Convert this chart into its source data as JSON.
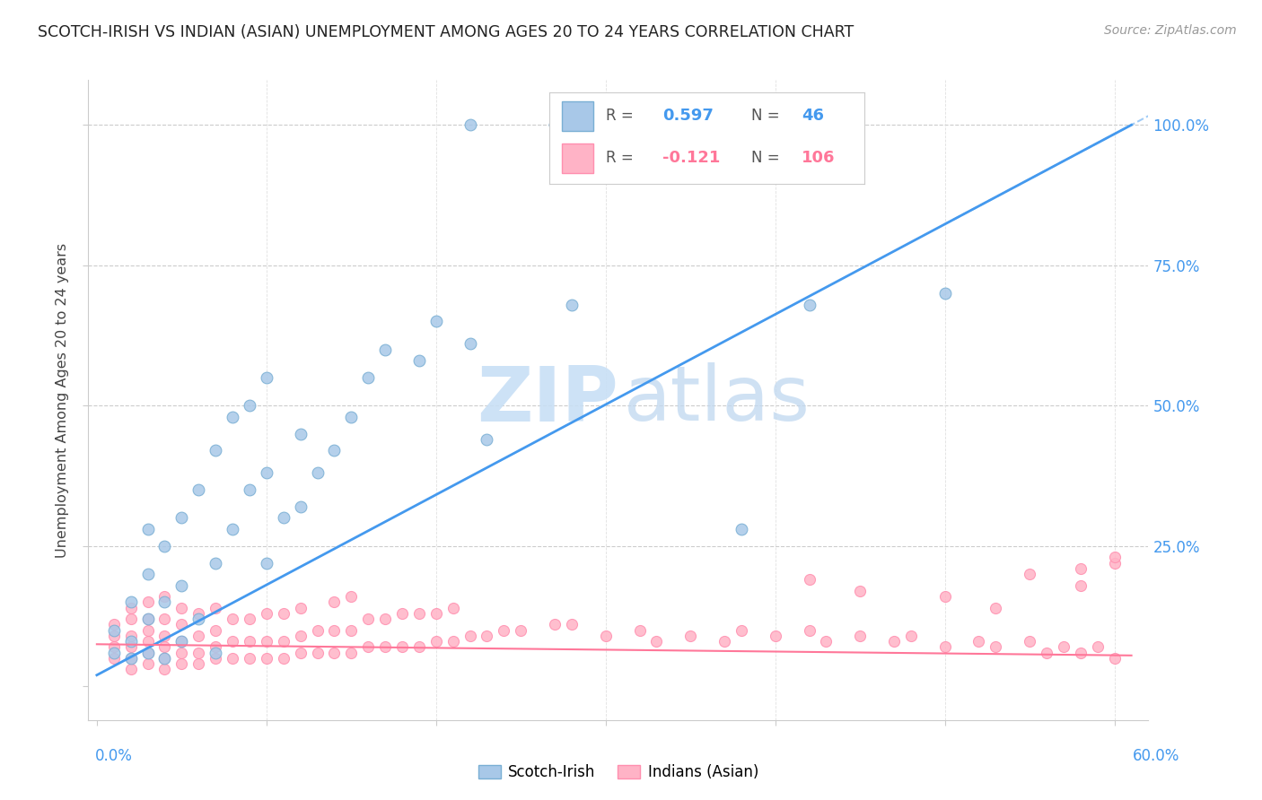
{
  "title": "SCOTCH-IRISH VS INDIAN (ASIAN) UNEMPLOYMENT AMONG AGES 20 TO 24 YEARS CORRELATION CHART",
  "source": "Source: ZipAtlas.com",
  "ylabel": "Unemployment Among Ages 20 to 24 years",
  "xlim": [
    -0.005,
    0.62
  ],
  "ylim": [
    -0.06,
    1.08
  ],
  "blue_color": "#A8C8E8",
  "blue_edge_color": "#7AAFD4",
  "pink_color": "#FFB3C6",
  "pink_edge_color": "#FF8FAF",
  "blue_line_color": "#4499EE",
  "pink_line_color": "#FF7799",
  "blue_trend_x0": 0.0,
  "blue_trend_y0": 0.02,
  "blue_trend_x1": 0.61,
  "blue_trend_y1": 1.0,
  "pink_trend_x0": 0.0,
  "pink_trend_y0": 0.075,
  "pink_trend_x1": 0.61,
  "pink_trend_y1": 0.055,
  "scotch_irish_R": 0.597,
  "scotch_irish_N": 46,
  "indian_R": -0.121,
  "indian_N": 106,
  "scotch_irish_x": [
    0.01,
    0.01,
    0.02,
    0.02,
    0.02,
    0.03,
    0.03,
    0.03,
    0.03,
    0.04,
    0.04,
    0.04,
    0.05,
    0.05,
    0.05,
    0.06,
    0.06,
    0.07,
    0.07,
    0.07,
    0.08,
    0.08,
    0.09,
    0.09,
    0.1,
    0.1,
    0.1,
    0.11,
    0.12,
    0.12,
    0.13,
    0.14,
    0.15,
    0.16,
    0.17,
    0.19,
    0.2,
    0.22,
    0.22,
    0.23,
    0.27,
    0.28,
    0.32,
    0.38,
    0.42,
    0.5
  ],
  "scotch_irish_y": [
    0.06,
    0.1,
    0.05,
    0.08,
    0.15,
    0.06,
    0.12,
    0.2,
    0.28,
    0.05,
    0.15,
    0.25,
    0.08,
    0.18,
    0.3,
    0.12,
    0.35,
    0.06,
    0.22,
    0.42,
    0.28,
    0.48,
    0.35,
    0.5,
    0.22,
    0.38,
    0.55,
    0.3,
    0.32,
    0.45,
    0.38,
    0.42,
    0.48,
    0.55,
    0.6,
    0.58,
    0.65,
    0.61,
    1.0,
    0.44,
    1.0,
    0.68,
    1.0,
    0.28,
    0.68,
    0.7
  ],
  "indian_x": [
    0.01,
    0.01,
    0.01,
    0.01,
    0.02,
    0.02,
    0.02,
    0.02,
    0.02,
    0.02,
    0.03,
    0.03,
    0.03,
    0.03,
    0.03,
    0.03,
    0.04,
    0.04,
    0.04,
    0.04,
    0.04,
    0.04,
    0.05,
    0.05,
    0.05,
    0.05,
    0.05,
    0.06,
    0.06,
    0.06,
    0.06,
    0.07,
    0.07,
    0.07,
    0.07,
    0.08,
    0.08,
    0.08,
    0.09,
    0.09,
    0.09,
    0.1,
    0.1,
    0.1,
    0.11,
    0.11,
    0.11,
    0.12,
    0.12,
    0.12,
    0.13,
    0.13,
    0.14,
    0.14,
    0.14,
    0.15,
    0.15,
    0.15,
    0.16,
    0.16,
    0.17,
    0.17,
    0.18,
    0.18,
    0.19,
    0.19,
    0.2,
    0.2,
    0.21,
    0.21,
    0.22,
    0.23,
    0.24,
    0.25,
    0.27,
    0.28,
    0.3,
    0.32,
    0.33,
    0.35,
    0.37,
    0.38,
    0.4,
    0.42,
    0.43,
    0.45,
    0.47,
    0.48,
    0.5,
    0.52,
    0.53,
    0.55,
    0.56,
    0.57,
    0.58,
    0.59,
    0.6,
    0.6,
    0.55,
    0.58,
    0.42,
    0.45,
    0.5,
    0.53,
    0.58,
    0.6
  ],
  "indian_y": [
    0.05,
    0.07,
    0.09,
    0.11,
    0.03,
    0.05,
    0.07,
    0.09,
    0.12,
    0.14,
    0.04,
    0.06,
    0.08,
    0.1,
    0.12,
    0.15,
    0.03,
    0.05,
    0.07,
    0.09,
    0.12,
    0.16,
    0.04,
    0.06,
    0.08,
    0.11,
    0.14,
    0.04,
    0.06,
    0.09,
    0.13,
    0.05,
    0.07,
    0.1,
    0.14,
    0.05,
    0.08,
    0.12,
    0.05,
    0.08,
    0.12,
    0.05,
    0.08,
    0.13,
    0.05,
    0.08,
    0.13,
    0.06,
    0.09,
    0.14,
    0.06,
    0.1,
    0.06,
    0.1,
    0.15,
    0.06,
    0.1,
    0.16,
    0.07,
    0.12,
    0.07,
    0.12,
    0.07,
    0.13,
    0.07,
    0.13,
    0.08,
    0.13,
    0.08,
    0.14,
    0.09,
    0.09,
    0.1,
    0.1,
    0.11,
    0.11,
    0.09,
    0.1,
    0.08,
    0.09,
    0.08,
    0.1,
    0.09,
    0.1,
    0.08,
    0.09,
    0.08,
    0.09,
    0.07,
    0.08,
    0.07,
    0.08,
    0.06,
    0.07,
    0.06,
    0.07,
    0.05,
    0.22,
    0.2,
    0.18,
    0.19,
    0.17,
    0.16,
    0.14,
    0.21,
    0.23
  ]
}
